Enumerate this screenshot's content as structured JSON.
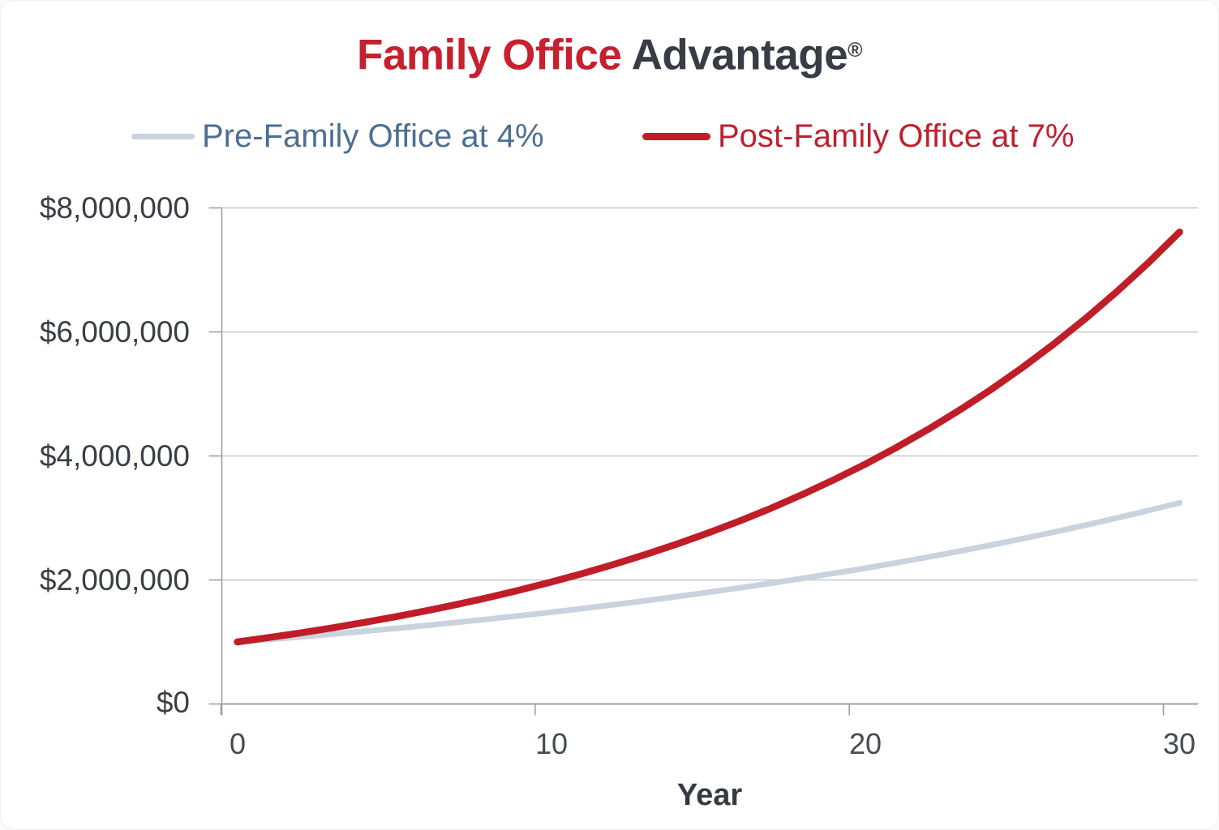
{
  "title": {
    "red": "Family Office",
    "dark": " Advantage",
    "registered": "®",
    "red_color": "#c7202e",
    "dark_color": "#373c45"
  },
  "legend": {
    "items": [
      {
        "label": "Pre-Family Office at 4%",
        "text_color": "#4c6f93",
        "line_color": "#c9d2de"
      },
      {
        "label": "Post-Family Office at 7%",
        "text_color": "#bd2130",
        "line_color": "#c01d28"
      }
    ]
  },
  "chart_data": {
    "type": "line",
    "title": "Family Office Advantage®",
    "xlabel": "Year",
    "ylabel": "",
    "xlim": [
      0,
      30
    ],
    "ylim": [
      0,
      8000000
    ],
    "grid": "horizontal",
    "legend_position": "top",
    "x": [
      0,
      1,
      2,
      3,
      4,
      5,
      6,
      7,
      8,
      9,
      10,
      11,
      12,
      13,
      14,
      15,
      16,
      17,
      18,
      19,
      20,
      21,
      22,
      23,
      24,
      25,
      26,
      27,
      28,
      29,
      30
    ],
    "series": [
      {
        "name": "Pre-Family Office at 4%",
        "start_value": 1000000,
        "growth_rate": 0.04,
        "color": "#c9d2de",
        "values": [
          1000000,
          1040000,
          1081600,
          1124864,
          1169859,
          1216653,
          1265319,
          1315932,
          1368569,
          1423312,
          1480244,
          1539454,
          1601032,
          1665074,
          1731676,
          1800944,
          1872981,
          1947900,
          2025817,
          2106849,
          2191123,
          2278768,
          2369919,
          2464716,
          2563304,
          2665836,
          2772470,
          2883369,
          2998703,
          3118651,
          3243398
        ]
      },
      {
        "name": "Post-Family Office at 7%",
        "start_value": 1000000,
        "growth_rate": 0.07,
        "color": "#c01d28",
        "values": [
          1000000,
          1070000,
          1144900,
          1225043,
          1310796,
          1402552,
          1500730,
          1605781,
          1718186,
          1838459,
          1967151,
          2104852,
          2252192,
          2409845,
          2578534,
          2759032,
          2952164,
          3158815,
          3379932,
          3616528,
          3869684,
          4140562,
          4430402,
          4740530,
          5072367,
          5427433,
          5807353,
          6213868,
          6648838,
          7114257,
          7612255
        ]
      }
    ],
    "yticks": [
      0,
      2000000,
      4000000,
      6000000,
      8000000
    ],
    "ytick_labels": [
      "$0",
      "$2,000,000",
      "$4,000,000",
      "$6,000,000",
      "$8,000,000"
    ],
    "xticks": [
      0,
      10,
      20,
      30
    ],
    "xtick_labels": [
      "0",
      "10",
      "20",
      "30"
    ],
    "grid_color": "#c5c8ce",
    "axis_color": "#9aa0a7"
  }
}
